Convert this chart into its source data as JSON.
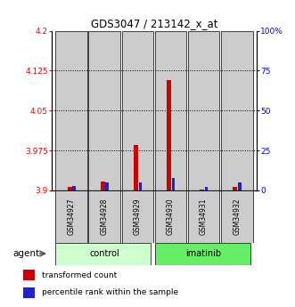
{
  "title": "GDS3047 / 213142_x_at",
  "samples": [
    "GSM34927",
    "GSM34928",
    "GSM34929",
    "GSM34930",
    "GSM34931",
    "GSM34932"
  ],
  "groups": [
    "control",
    "control",
    "control",
    "imatinib",
    "imatinib",
    "imatinib"
  ],
  "red_values": [
    3.906,
    3.916,
    3.985,
    4.108,
    3.902,
    3.906
  ],
  "blue_values": [
    3,
    5,
    5,
    8,
    2,
    5
  ],
  "ylim_left": [
    3.9,
    4.2
  ],
  "ylim_right": [
    0,
    100
  ],
  "yticks_left": [
    3.9,
    3.975,
    4.05,
    4.125,
    4.2
  ],
  "yticks_right": [
    0,
    25,
    50,
    75,
    100
  ],
  "ytick_labels_left": [
    "3.9",
    "3.975",
    "4.05",
    "4.125",
    "4.2"
  ],
  "ytick_labels_right": [
    "0",
    "25",
    "50",
    "75",
    "100%"
  ],
  "grid_values": [
    3.975,
    4.05,
    4.125
  ],
  "red_color": "#cc0000",
  "blue_color": "#2222cc",
  "control_color": "#ccffcc",
  "imatinib_color": "#66ee66",
  "bar_bg_color": "#cccccc",
  "legend_red": "transformed count",
  "legend_blue": "percentile rank within the sample",
  "xlabel_label": "agent",
  "group_label_control": "control",
  "group_label_imatinib": "imatinib"
}
